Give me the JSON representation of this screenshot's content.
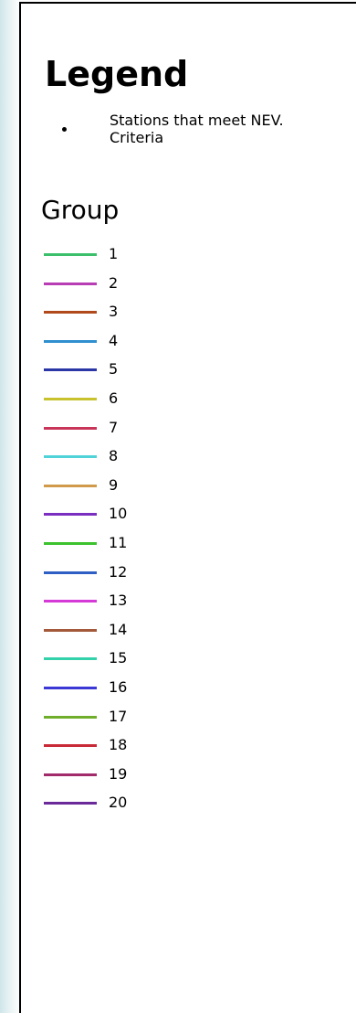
{
  "legend": {
    "title": "Legend",
    "station_label_line1": "Stations that meet NEV.",
    "station_label_line2": "Criteria",
    "group_heading": "Group",
    "groups": [
      {
        "label": "1",
        "color": "#3bbf6a"
      },
      {
        "label": "2",
        "color": "#b83db5"
      },
      {
        "label": "3",
        "color": "#b04a1c"
      },
      {
        "label": "4",
        "color": "#2f8fcf"
      },
      {
        "label": "5",
        "color": "#2a35a6"
      },
      {
        "label": "6",
        "color": "#c7c22e"
      },
      {
        "label": "7",
        "color": "#c93558"
      },
      {
        "label": "8",
        "color": "#4fd2d8"
      },
      {
        "label": "9",
        "color": "#d09a4a"
      },
      {
        "label": "10",
        "color": "#7b2fc0"
      },
      {
        "label": "11",
        "color": "#3cc22e"
      },
      {
        "label": "12",
        "color": "#2f5fc4"
      },
      {
        "label": "13",
        "color": "#d63ad6"
      },
      {
        "label": "14",
        "color": "#a3593a"
      },
      {
        "label": "15",
        "color": "#32d1aa"
      },
      {
        "label": "16",
        "color": "#3b38d6"
      },
      {
        "label": "17",
        "color": "#6fae2a"
      },
      {
        "label": "18",
        "color": "#c92a37"
      },
      {
        "label": "19",
        "color": "#a02a6a"
      },
      {
        "label": "20",
        "color": "#6a2a9a"
      }
    ]
  }
}
